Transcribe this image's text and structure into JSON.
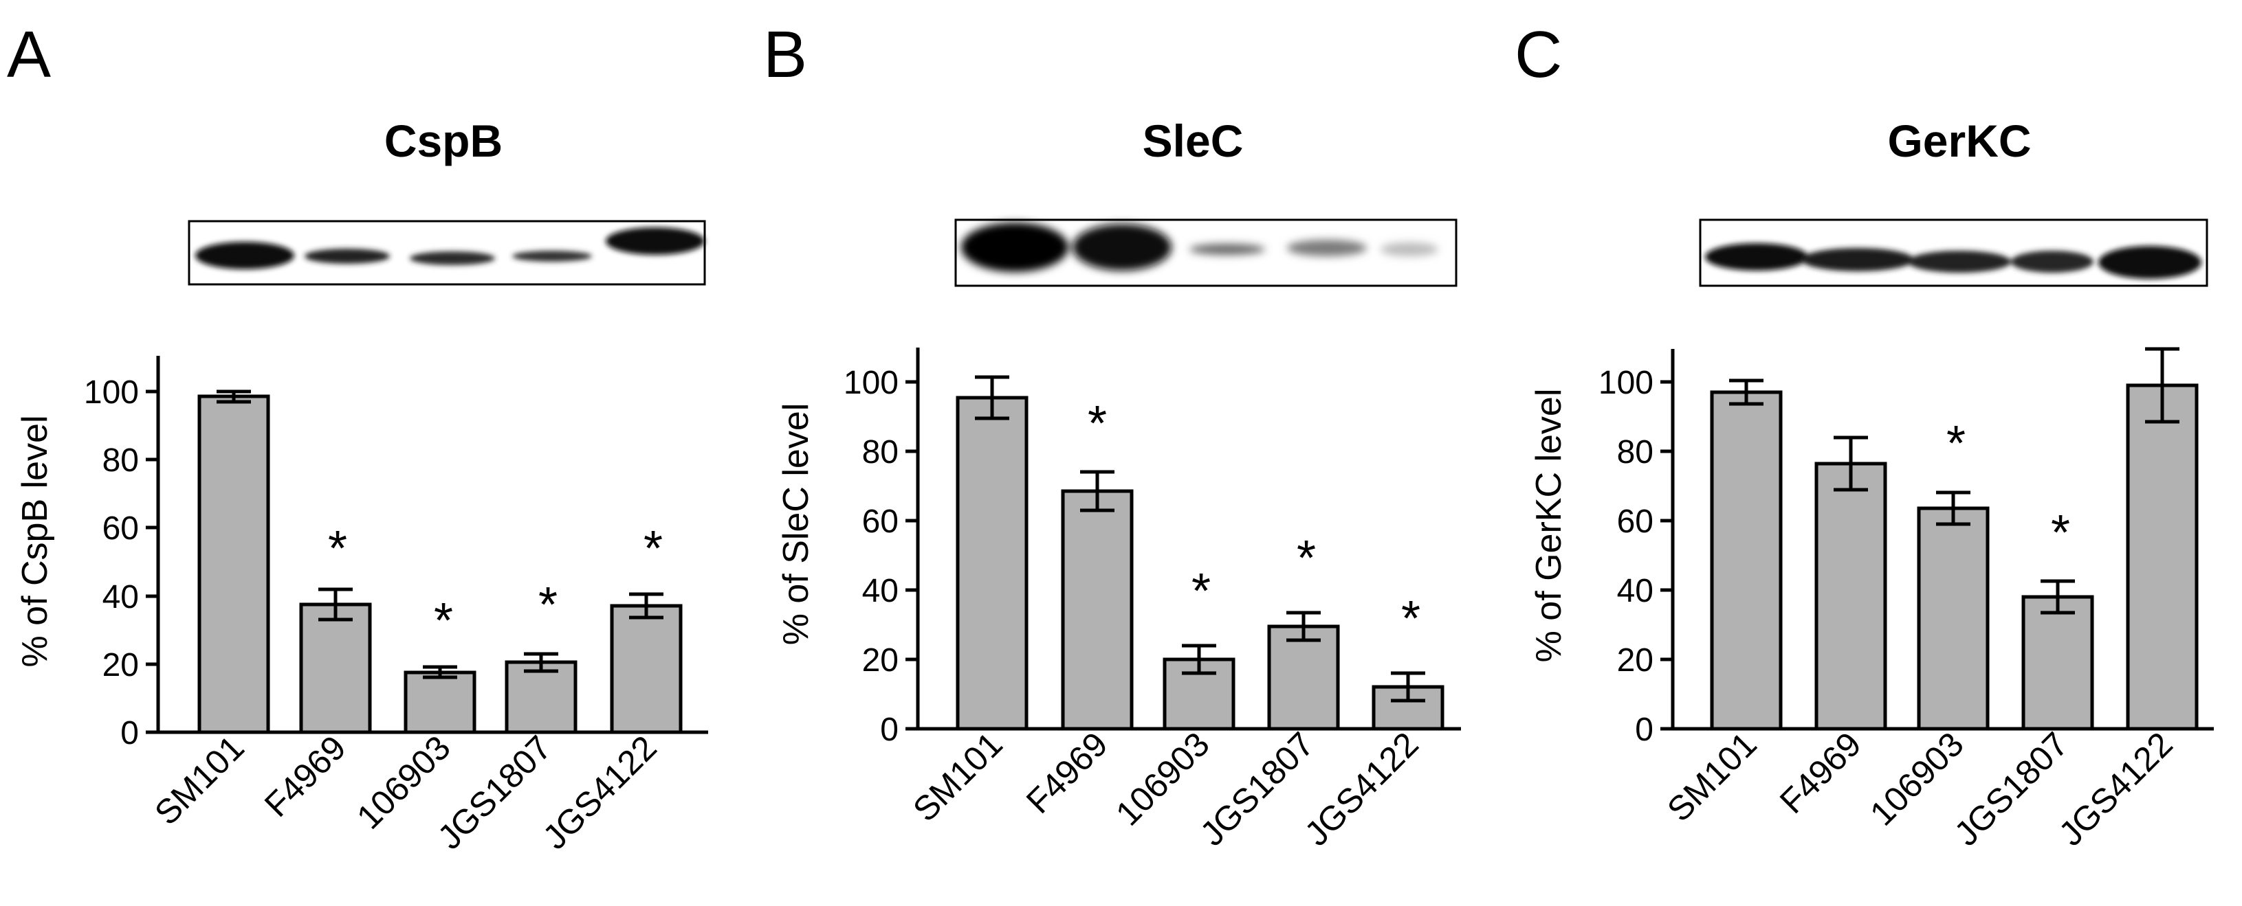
{
  "figure": {
    "panels": [
      {
        "letter": "A",
        "protein": "CspB"
      },
      {
        "letter": "B",
        "protein": "SleC"
      },
      {
        "letter": "C",
        "protein": "GerKC"
      }
    ]
  },
  "colors": {
    "bar_fill": "#b2b2b2",
    "stroke": "#000000"
  },
  "chart_data": [
    {
      "type": "bar",
      "title": "CspB",
      "ylabel": "% of CspB level",
      "ylim": [
        0,
        110
      ],
      "yticks": [
        0,
        20,
        40,
        60,
        80,
        100
      ],
      "categories": [
        "SM101",
        "F4969",
        "106903",
        "JGS1807",
        "JGS4122"
      ],
      "values": [
        98.5,
        37.5,
        17.5,
        20.5,
        37
      ],
      "errors": [
        1.5,
        4.5,
        1.5,
        2.5,
        3.5
      ],
      "significant": [
        "",
        "*",
        "*",
        "*",
        "*"
      ],
      "grid": false
    },
    {
      "type": "bar",
      "title": "SleC",
      "ylabel": "% of SleC level",
      "ylim": [
        0,
        110
      ],
      "yticks": [
        0,
        20,
        40,
        60,
        80,
        100
      ],
      "categories": [
        "SM101",
        "F4969",
        "106903",
        "JGS1807",
        "JGS4122"
      ],
      "values": [
        95.5,
        68.5,
        20,
        29.5,
        12
      ],
      "errors": [
        6,
        5.5,
        4,
        4,
        4
      ],
      "significant": [
        "",
        "*",
        "*",
        "*",
        "*"
      ],
      "grid": false
    },
    {
      "type": "bar",
      "title": "GerKC",
      "ylabel": "% of GerKC level",
      "ylim": [
        0,
        110
      ],
      "yticks": [
        0,
        20,
        40,
        60,
        80,
        100
      ],
      "categories": [
        "SM101",
        "F4969",
        "106903",
        "JGS1807",
        "JGS4122"
      ],
      "values": [
        97,
        76.5,
        63.5,
        38,
        99
      ],
      "errors": [
        3.5,
        7.5,
        4.5,
        4.5,
        10.5
      ],
      "significant": [
        "",
        "",
        "*",
        "*",
        ""
      ],
      "grid": false
    }
  ]
}
